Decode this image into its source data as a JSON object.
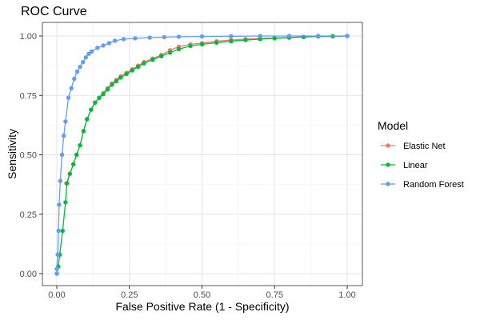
{
  "chart_data": {
    "type": "line",
    "title": "ROC Curve",
    "xlabel": "False Positive Rate (1 - Specificity)",
    "ylabel": "Sensitivity",
    "xlim": [
      0,
      1
    ],
    "ylim": [
      0,
      1
    ],
    "x_ticks": [
      "0.00",
      "0.25",
      "0.50",
      "0.75",
      "1.00"
    ],
    "y_ticks": [
      "0.00",
      "0.25",
      "0.50",
      "0.75",
      "1.00"
    ],
    "grid": true,
    "legend": {
      "title": "Model",
      "placement": "right"
    },
    "series": [
      {
        "name": "Elastic Net",
        "color": "#F8766D",
        "points": [
          [
            0.033,
            0.38
          ],
          [
            0.045,
            0.42
          ],
          [
            0.057,
            0.46
          ],
          [
            0.068,
            0.5
          ],
          [
            0.08,
            0.54
          ],
          [
            0.092,
            0.6
          ],
          [
            0.104,
            0.65
          ],
          [
            0.118,
            0.69
          ],
          [
            0.132,
            0.72
          ],
          [
            0.146,
            0.74
          ],
          [
            0.16,
            0.76
          ],
          [
            0.175,
            0.78
          ],
          [
            0.19,
            0.8
          ],
          [
            0.205,
            0.815
          ],
          [
            0.22,
            0.83
          ],
          [
            0.24,
            0.845
          ],
          [
            0.26,
            0.86
          ],
          [
            0.28,
            0.875
          ],
          [
            0.3,
            0.89
          ],
          [
            0.33,
            0.905
          ],
          [
            0.36,
            0.92
          ],
          [
            0.39,
            0.94
          ],
          [
            0.42,
            0.955
          ],
          [
            0.46,
            0.965
          ],
          [
            0.5,
            0.97
          ],
          [
            0.55,
            0.978
          ],
          [
            0.6,
            0.983
          ],
          [
            0.65,
            0.987
          ],
          [
            0.7,
            0.99
          ],
          [
            0.75,
            0.992
          ],
          [
            0.8,
            0.994
          ],
          [
            0.85,
            0.996
          ],
          [
            0.9,
            0.998
          ],
          [
            0.95,
            0.999
          ],
          [
            1.0,
            1.0
          ]
        ]
      },
      {
        "name": "Linear",
        "color": "#00BA38",
        "points": [
          [
            0.0,
            0.0
          ],
          [
            0.005,
            0.03
          ],
          [
            0.01,
            0.08
          ],
          [
            0.02,
            0.18
          ],
          [
            0.03,
            0.3
          ],
          [
            0.035,
            0.38
          ],
          [
            0.045,
            0.42
          ],
          [
            0.057,
            0.46
          ],
          [
            0.068,
            0.5
          ],
          [
            0.08,
            0.54
          ],
          [
            0.092,
            0.6
          ],
          [
            0.104,
            0.65
          ],
          [
            0.118,
            0.69
          ],
          [
            0.132,
            0.72
          ],
          [
            0.146,
            0.74
          ],
          [
            0.16,
            0.755
          ],
          [
            0.175,
            0.775
          ],
          [
            0.19,
            0.795
          ],
          [
            0.205,
            0.81
          ],
          [
            0.22,
            0.825
          ],
          [
            0.24,
            0.84
          ],
          [
            0.26,
            0.855
          ],
          [
            0.28,
            0.87
          ],
          [
            0.3,
            0.885
          ],
          [
            0.33,
            0.9
          ],
          [
            0.36,
            0.915
          ],
          [
            0.39,
            0.93
          ],
          [
            0.42,
            0.945
          ],
          [
            0.46,
            0.958
          ],
          [
            0.5,
            0.965
          ],
          [
            0.55,
            0.972
          ],
          [
            0.6,
            0.978
          ],
          [
            0.65,
            0.983
          ],
          [
            0.7,
            0.987
          ],
          [
            0.75,
            0.99
          ],
          [
            0.8,
            0.993
          ],
          [
            0.85,
            0.996
          ],
          [
            0.9,
            0.998
          ],
          [
            0.95,
            0.999
          ],
          [
            1.0,
            1.0
          ]
        ]
      },
      {
        "name": "Random Forest",
        "color": "#619CFF",
        "points": [
          [
            0.0,
            0.0
          ],
          [
            0.0,
            0.02
          ],
          [
            0.003,
            0.08
          ],
          [
            0.006,
            0.18
          ],
          [
            0.008,
            0.29
          ],
          [
            0.012,
            0.39
          ],
          [
            0.018,
            0.5
          ],
          [
            0.024,
            0.58
          ],
          [
            0.03,
            0.64
          ],
          [
            0.04,
            0.74
          ],
          [
            0.05,
            0.78
          ],
          [
            0.06,
            0.82
          ],
          [
            0.07,
            0.85
          ],
          [
            0.08,
            0.87
          ],
          [
            0.09,
            0.89
          ],
          [
            0.1,
            0.91
          ],
          [
            0.11,
            0.925
          ],
          [
            0.12,
            0.935
          ],
          [
            0.14,
            0.95
          ],
          [
            0.16,
            0.96
          ],
          [
            0.18,
            0.97
          ],
          [
            0.2,
            0.98
          ],
          [
            0.23,
            0.987
          ],
          [
            0.27,
            0.99
          ],
          [
            0.32,
            0.993
          ],
          [
            0.37,
            0.995
          ],
          [
            0.42,
            0.997
          ],
          [
            0.5,
            0.998
          ],
          [
            0.6,
            0.999
          ],
          [
            0.7,
            1.0
          ],
          [
            0.8,
            1.0
          ],
          [
            0.9,
            1.0
          ],
          [
            1.0,
            1.0
          ]
        ]
      }
    ]
  }
}
